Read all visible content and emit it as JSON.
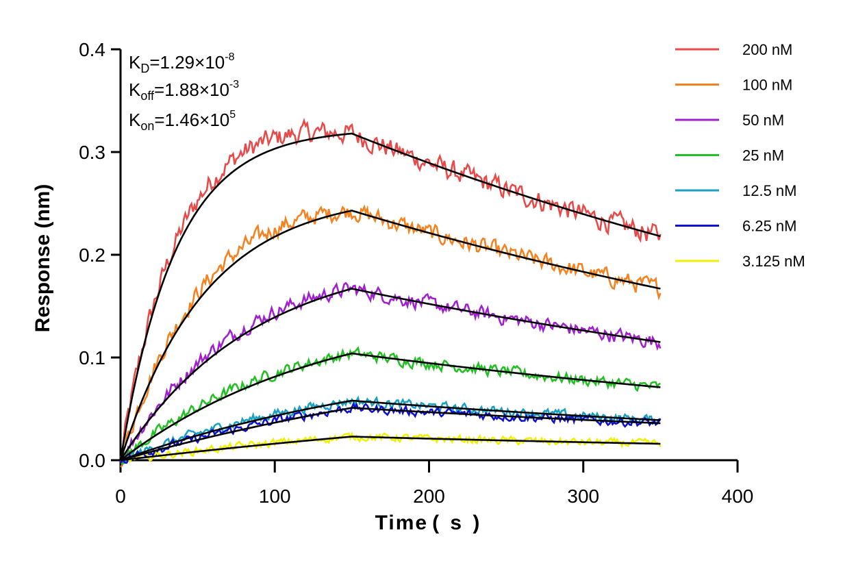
{
  "chart_data": {
    "type": "line",
    "xlabel": "Time",
    "xlabel_unit": "( s )",
    "ylabel": "Response (nm)",
    "xlim": [
      0,
      400
    ],
    "ylim": [
      0,
      0.4
    ],
    "x_ticks": [
      0,
      100,
      200,
      300,
      400
    ],
    "y_ticks": [
      0.0,
      0.1,
      0.2,
      0.3,
      0.4
    ],
    "x_tick_labels": [
      "0",
      "100",
      "200",
      "300",
      "400"
    ],
    "y_tick_labels": [
      "0.0",
      "0.1",
      "0.2",
      "0.3",
      "0.4"
    ],
    "association_end_s": 150,
    "dissociation_end_s": 350,
    "grid": false,
    "legend_position": "right",
    "kinetics": {
      "kd_label": "K",
      "kd_sub": "D",
      "kd_mantissa": "=1.29×10",
      "kd_exp": "-8",
      "koff_label": "K",
      "koff_sub": "off",
      "koff_mantissa": "=1.88×10",
      "koff_exp": "-3",
      "kon_label": "K",
      "kon_sub": "on",
      "kon_mantissa": "=1.46×10",
      "kon_exp": "5"
    },
    "series": [
      {
        "name": "200 nM",
        "color": "#e84a4a",
        "peak": 0.318,
        "end": 0.218
      },
      {
        "name": "100 nM",
        "color": "#f5821f",
        "peak": 0.243,
        "end": 0.167
      },
      {
        "name": "50 nM",
        "color": "#a020d0",
        "peak": 0.167,
        "end": 0.115
      },
      {
        "name": "25 nM",
        "color": "#22c022",
        "peak": 0.104,
        "end": 0.071
      },
      {
        "name": "12.5 nM",
        "color": "#1aa0c0",
        "peak": 0.058,
        "end": 0.039
      },
      {
        "name": "6.25 nM",
        "color": "#1010d0",
        "peak": 0.051,
        "end": 0.036
      },
      {
        "name": "3.125 nM",
        "color": "#f0f000",
        "peak": 0.023,
        "end": 0.016
      }
    ],
    "fit_color": "#000000"
  }
}
